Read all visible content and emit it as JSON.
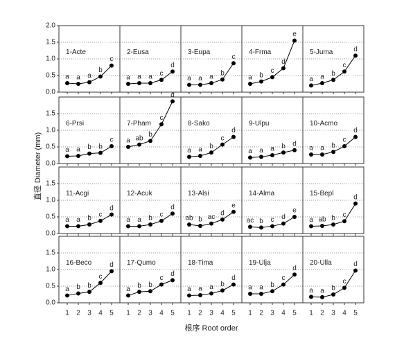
{
  "y_label": "直径 Diameter (mm)",
  "x_label": "根序 Root order",
  "chart_data": [
    {
      "type": "line",
      "title": "1-Acte",
      "x": [
        1,
        2,
        3,
        4,
        5
      ],
      "values": [
        0.27,
        0.25,
        0.3,
        0.47,
        0.8
      ],
      "annotations": [
        "a",
        "a",
        "a",
        "b",
        "c"
      ],
      "xlim": [
        0.25,
        5.75
      ],
      "ylim": [
        0,
        2
      ],
      "xticks": [
        1,
        2,
        3,
        4,
        5
      ],
      "yticks": [
        {
          "value": 0,
          "label": "0.0"
        },
        {
          "value": 0.5,
          "label": "0.5"
        },
        {
          "value": 1,
          "label": "1.0"
        },
        {
          "value": 1.5,
          "label": "1.5"
        },
        {
          "value": 2,
          "label": "2.0"
        }
      ]
    },
    {
      "type": "line",
      "title": "2-Eusa",
      "x": [
        1,
        2,
        3,
        4,
        5
      ],
      "values": [
        0.25,
        0.27,
        0.27,
        0.37,
        0.62
      ],
      "annotations": [
        "a",
        "a",
        "a",
        "c",
        "d"
      ],
      "xlim": [
        0.25,
        5.75
      ],
      "ylim": [
        0,
        2
      ],
      "xticks": [
        1,
        2,
        3,
        4,
        5
      ],
      "yticks": [
        0.5,
        1,
        1.5
      ]
    },
    {
      "type": "line",
      "title": "3-Eupa",
      "x": [
        1,
        2,
        3,
        4,
        5
      ],
      "values": [
        0.22,
        0.22,
        0.27,
        0.38,
        0.87
      ],
      "annotations": [
        "a",
        "a",
        "a",
        "b",
        "c"
      ],
      "xlim": [
        0.25,
        5.75
      ],
      "ylim": [
        0,
        2
      ],
      "xticks": [
        1,
        2,
        3,
        4,
        5
      ],
      "yticks": [
        0.5,
        1,
        1.5
      ]
    },
    {
      "type": "line",
      "title": "4-Frma",
      "x": [
        1,
        2,
        3,
        4,
        5
      ],
      "values": [
        0.25,
        0.32,
        0.45,
        0.72,
        1.55
      ],
      "annotations": [
        "a",
        "b",
        "c",
        "d",
        "e"
      ],
      "xlim": [
        0.25,
        5.75
      ],
      "ylim": [
        0,
        2
      ],
      "xticks": [
        1,
        2,
        3,
        4,
        5
      ],
      "yticks": [
        0.5,
        1,
        1.5
      ]
    },
    {
      "type": "line",
      "title": "5-Juma",
      "x": [
        1,
        2,
        3,
        4,
        5
      ],
      "values": [
        0.2,
        0.27,
        0.37,
        0.62,
        1.1
      ],
      "annotations": [
        "a",
        "a",
        "b",
        "c",
        "d"
      ],
      "xlim": [
        0.25,
        5.75
      ],
      "ylim": [
        0,
        2
      ],
      "xticks": [
        1,
        2,
        3,
        4,
        5
      ],
      "yticks": [
        0.5,
        1,
        1.5
      ]
    },
    {
      "type": "line",
      "title": "6-Prsi",
      "x": [
        1,
        2,
        3,
        4,
        5
      ],
      "values": [
        0.22,
        0.23,
        0.3,
        0.32,
        0.52
      ],
      "annotations": [
        "a",
        "a",
        "b",
        "b",
        "c"
      ],
      "xlim": [
        0.25,
        5.75
      ],
      "ylim": [
        0,
        2
      ],
      "xticks": [
        1,
        2,
        3,
        4,
        5
      ],
      "yticks": [
        {
          "value": 0,
          "label": "0.0"
        },
        {
          "value": 0.5,
          "label": "0.5"
        },
        {
          "value": 1,
          "label": "1.0"
        },
        {
          "value": 1.5,
          "label": "1.5"
        }
      ]
    },
    {
      "type": "line",
      "title": "7-Pham",
      "x": [
        1,
        2,
        3,
        4,
        5
      ],
      "values": [
        0.5,
        0.57,
        0.68,
        1.18,
        1.87
      ],
      "annotations": [
        "a",
        "ab",
        "b",
        "c",
        "d"
      ],
      "xlim": [
        0.25,
        5.75
      ],
      "ylim": [
        0,
        2
      ],
      "xticks": [
        1,
        2,
        3,
        4,
        5
      ],
      "yticks": [
        0.5,
        1,
        1.5
      ]
    },
    {
      "type": "line",
      "title": "8-Sako",
      "x": [
        1,
        2,
        3,
        4,
        5
      ],
      "values": [
        0.2,
        0.23,
        0.33,
        0.57,
        0.8
      ],
      "annotations": [
        "a",
        "a",
        "b",
        "c",
        "d"
      ],
      "xlim": [
        0.25,
        5.75
      ],
      "ylim": [
        0,
        2
      ],
      "xticks": [
        1,
        2,
        3,
        4,
        5
      ],
      "yticks": [
        0.5,
        1,
        1.5
      ]
    },
    {
      "type": "line",
      "title": "9-Ulpu",
      "x": [
        1,
        2,
        3,
        4,
        5
      ],
      "values": [
        0.18,
        0.2,
        0.25,
        0.33,
        0.4
      ],
      "annotations": [
        "a",
        "a",
        "a",
        "b",
        "d"
      ],
      "xlim": [
        0.25,
        5.75
      ],
      "ylim": [
        0,
        2
      ],
      "xticks": [
        1,
        2,
        3,
        4,
        5
      ],
      "yticks": [
        0.5,
        1,
        1.5
      ]
    },
    {
      "type": "line",
      "title": "10-Acmo",
      "x": [
        1,
        2,
        3,
        4,
        5
      ],
      "values": [
        0.27,
        0.27,
        0.35,
        0.52,
        0.8
      ],
      "annotations": [
        "a",
        "a",
        "b",
        "c",
        "d"
      ],
      "xlim": [
        0.25,
        5.75
      ],
      "ylim": [
        0,
        2
      ],
      "xticks": [
        1,
        2,
        3,
        4,
        5
      ],
      "yticks": [
        0.5,
        1,
        1.5
      ]
    },
    {
      "type": "line",
      "title": "11-Acgi",
      "x": [
        1,
        2,
        3,
        4,
        5
      ],
      "values": [
        0.22,
        0.22,
        0.27,
        0.38,
        0.57
      ],
      "annotations": [
        "a",
        "a",
        "b",
        "c",
        "d"
      ],
      "xlim": [
        0.25,
        5.75
      ],
      "ylim": [
        0,
        2
      ],
      "xticks": [
        1,
        2,
        3,
        4,
        5
      ],
      "yticks": [
        {
          "value": 0,
          "label": "0.0"
        },
        {
          "value": 0.5,
          "label": "0.5"
        },
        {
          "value": 1,
          "label": "1.0"
        },
        {
          "value": 1.5,
          "label": "1.5"
        }
      ]
    },
    {
      "type": "line",
      "title": "12-Acuk",
      "x": [
        1,
        2,
        3,
        4,
        5
      ],
      "values": [
        0.22,
        0.22,
        0.27,
        0.38,
        0.6
      ],
      "annotations": [
        "a",
        "a",
        "b",
        "c",
        "d"
      ],
      "xlim": [
        0.25,
        5.75
      ],
      "ylim": [
        0,
        2
      ],
      "xticks": [
        1,
        2,
        3,
        4,
        5
      ],
      "yticks": [
        0.5,
        1,
        1.5
      ]
    },
    {
      "type": "line",
      "title": "13-Alsi",
      "x": [
        1,
        2,
        3,
        4,
        5
      ],
      "values": [
        0.27,
        0.23,
        0.3,
        0.42,
        0.65
      ],
      "annotations": [
        "ab",
        "b",
        "ac",
        "d",
        "e"
      ],
      "xlim": [
        0.25,
        5.75
      ],
      "ylim": [
        0,
        2
      ],
      "xticks": [
        1,
        2,
        3,
        4,
        5
      ],
      "yticks": [
        0.5,
        1,
        1.5
      ]
    },
    {
      "type": "line",
      "title": "14-Alma",
      "x": [
        1,
        2,
        3,
        4,
        5
      ],
      "values": [
        0.2,
        0.18,
        0.22,
        0.3,
        0.5
      ],
      "annotations": [
        "ac",
        "b",
        "c",
        "d",
        "e"
      ],
      "xlim": [
        0.25,
        5.75
      ],
      "ylim": [
        0,
        2
      ],
      "xticks": [
        1,
        2,
        3,
        4,
        5
      ],
      "yticks": [
        0.5,
        1,
        1.5
      ]
    },
    {
      "type": "line",
      "title": "15-Bepl",
      "x": [
        1,
        2,
        3,
        4,
        5
      ],
      "values": [
        0.22,
        0.23,
        0.27,
        0.37,
        0.9
      ],
      "annotations": [
        "a",
        "ab",
        "b",
        "c",
        "d"
      ],
      "xlim": [
        0.25,
        5.75
      ],
      "ylim": [
        0,
        2
      ],
      "xticks": [
        1,
        2,
        3,
        4,
        5
      ],
      "yticks": [
        0.5,
        1,
        1.5
      ]
    },
    {
      "type": "line",
      "title": "16-Beco",
      "x": [
        1,
        2,
        3,
        4,
        5
      ],
      "values": [
        0.22,
        0.28,
        0.33,
        0.6,
        0.95
      ],
      "annotations": [
        "a",
        "b",
        "b",
        "c",
        "d"
      ],
      "xlim": [
        0.25,
        5.75
      ],
      "ylim": [
        0,
        2
      ],
      "xticks": [
        1,
        2,
        3,
        4,
        5
      ],
      "yticks": [
        {
          "value": 0,
          "label": "0.0"
        },
        {
          "value": 0.5,
          "label": "0.5"
        },
        {
          "value": 1,
          "label": "1.0"
        },
        {
          "value": 1.5,
          "label": "1.5"
        }
      ]
    },
    {
      "type": "line",
      "title": "17-Qumo",
      "x": [
        1,
        2,
        3,
        4,
        5
      ],
      "values": [
        0.22,
        0.33,
        0.35,
        0.55,
        0.68
      ],
      "annotations": [
        "a",
        "b",
        "b",
        "c",
        "d"
      ],
      "xlim": [
        0.25,
        5.75
      ],
      "ylim": [
        0,
        2
      ],
      "xticks": [
        1,
        2,
        3,
        4,
        5
      ],
      "yticks": [
        0.5,
        1,
        1.5
      ]
    },
    {
      "type": "line",
      "title": "18-Tima",
      "x": [
        1,
        2,
        3,
        4,
        5
      ],
      "values": [
        0.22,
        0.23,
        0.28,
        0.37,
        0.55
      ],
      "annotations": [
        "a",
        "a",
        "a",
        "b",
        "d"
      ],
      "xlim": [
        0.25,
        5.75
      ],
      "ylim": [
        0,
        2
      ],
      "xticks": [
        1,
        2,
        3,
        4,
        5
      ],
      "yticks": [
        0.5,
        1,
        1.5
      ]
    },
    {
      "type": "line",
      "title": "19-Ulja",
      "x": [
        1,
        2,
        3,
        4,
        5
      ],
      "values": [
        0.27,
        0.27,
        0.35,
        0.55,
        0.85
      ],
      "annotations": [
        "a",
        "a",
        "b",
        "c",
        "d"
      ],
      "xlim": [
        0.25,
        5.75
      ],
      "ylim": [
        0,
        2
      ],
      "xticks": [
        1,
        2,
        3,
        4,
        5
      ],
      "yticks": [
        0.5,
        1,
        1.5
      ]
    },
    {
      "type": "line",
      "title": "20-Ulla",
      "x": [
        1,
        2,
        3,
        4,
        5
      ],
      "values": [
        0.18,
        0.17,
        0.25,
        0.45,
        0.97
      ],
      "annotations": [
        "a",
        "a",
        "b",
        "c",
        "d"
      ],
      "xlim": [
        0.25,
        5.75
      ],
      "ylim": [
        0,
        2
      ],
      "xticks": [
        1,
        2,
        3,
        4,
        5
      ],
      "yticks": [
        0.5,
        1,
        1.5
      ]
    }
  ]
}
